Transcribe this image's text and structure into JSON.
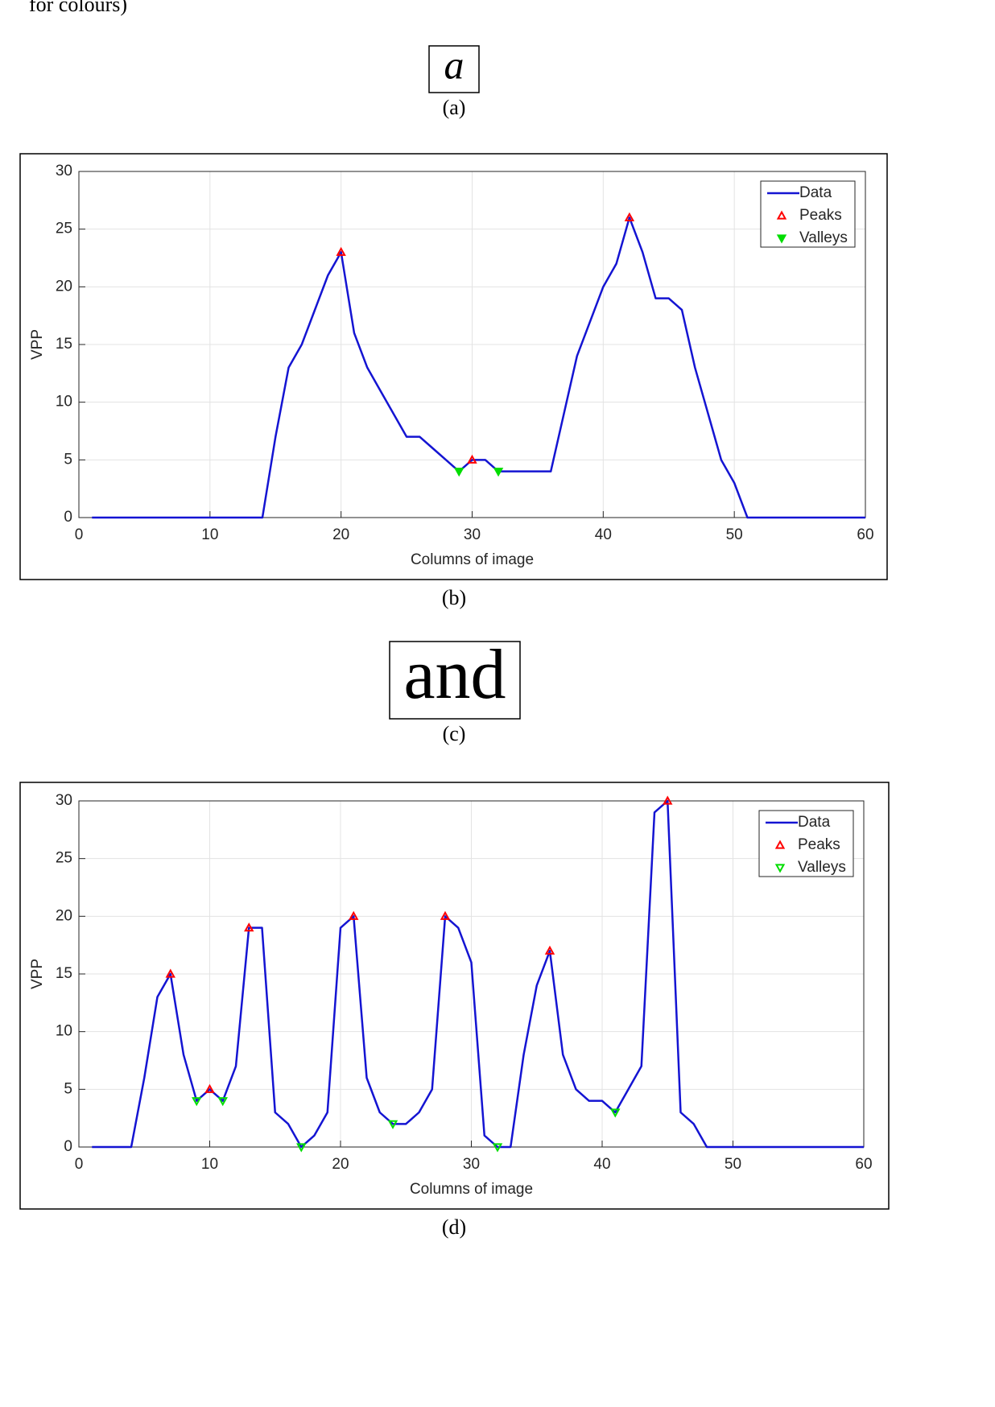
{
  "header_text": "for colours)",
  "panels": {
    "a": {
      "text": "a",
      "caption": "(a)"
    },
    "b": {
      "caption": "(b)"
    },
    "c": {
      "text": "and",
      "caption": "(c)"
    },
    "d": {
      "caption": "(d)"
    }
  },
  "chart_data": [
    {
      "type": "line",
      "xlabel": "Columns of image",
      "ylabel": "VPP",
      "x": [
        1,
        2,
        3,
        4,
        5,
        6,
        7,
        8,
        9,
        10,
        11,
        12,
        13,
        14,
        15,
        16,
        17,
        18,
        19,
        20,
        21,
        22,
        23,
        24,
        25,
        26,
        27,
        28,
        29,
        30,
        31,
        32,
        33,
        34,
        35,
        36,
        37,
        38,
        39,
        40,
        41,
        42,
        43,
        44,
        45,
        46,
        47,
        48,
        49,
        50,
        51,
        52,
        53,
        54,
        55,
        56,
        57,
        58,
        59,
        60
      ],
      "xlim": [
        0,
        60
      ],
      "xticks": [
        0,
        10,
        20,
        30,
        40,
        50,
        60
      ],
      "ylim": [
        0,
        30
      ],
      "yticks": [
        0,
        5,
        10,
        15,
        20,
        25,
        30
      ],
      "grid": true,
      "legend": "northeast",
      "series": [
        {
          "name": "Data",
          "color": "#1414d2",
          "marker": "line",
          "values": [
            0,
            0,
            0,
            0,
            0,
            0,
            0,
            0,
            0,
            0,
            0,
            0,
            0,
            0,
            7,
            13,
            15,
            18,
            21,
            23,
            16,
            13,
            11,
            9,
            7,
            7,
            6,
            5,
            4,
            5,
            5,
            4,
            4,
            4,
            4,
            4,
            9,
            14,
            17,
            20,
            22,
            26,
            23,
            19,
            19,
            18,
            13,
            9,
            5,
            3,
            0,
            0,
            0,
            0,
            0,
            0,
            0,
            0,
            0,
            0
          ]
        },
        {
          "name": "Peaks",
          "color": "#ff0000",
          "marker": "triangle-up",
          "filled": false,
          "x": [
            20,
            30,
            42
          ],
          "values": [
            23,
            5,
            26
          ]
        },
        {
          "name": "Valleys",
          "color": "#00dd00",
          "marker": "triangle-down",
          "filled": true,
          "x": [
            29,
            32
          ],
          "values": [
            4,
            4
          ]
        }
      ]
    },
    {
      "type": "line",
      "xlabel": "Columns of image",
      "ylabel": "VPP",
      "x": [
        1,
        2,
        3,
        4,
        5,
        6,
        7,
        8,
        9,
        10,
        11,
        12,
        13,
        14,
        15,
        16,
        17,
        18,
        19,
        20,
        21,
        22,
        23,
        24,
        25,
        26,
        27,
        28,
        29,
        30,
        31,
        32,
        33,
        34,
        35,
        36,
        37,
        38,
        39,
        40,
        41,
        42,
        43,
        44,
        45,
        46,
        47,
        48,
        49,
        50,
        51,
        52,
        53,
        54,
        55,
        56,
        57,
        58,
        59,
        60
      ],
      "xlim": [
        0,
        60
      ],
      "xticks": [
        0,
        10,
        20,
        30,
        40,
        50,
        60
      ],
      "ylim": [
        0,
        30
      ],
      "yticks": [
        0,
        5,
        10,
        15,
        20,
        25,
        30
      ],
      "grid": true,
      "legend": "northeast",
      "series": [
        {
          "name": "Data",
          "color": "#1414d2",
          "marker": "line",
          "values": [
            0,
            0,
            0,
            0,
            6,
            13,
            15,
            8,
            4,
            5,
            4,
            7,
            19,
            19,
            3,
            2,
            0,
            1,
            3,
            19,
            20,
            6,
            3,
            2,
            2,
            3,
            5,
            20,
            19,
            16,
            1,
            0,
            0,
            8,
            14,
            17,
            8,
            5,
            4,
            4,
            3,
            5,
            7,
            29,
            30,
            3,
            2,
            0,
            0,
            0,
            0,
            0,
            0,
            0,
            0,
            0,
            0,
            0,
            0,
            0
          ]
        },
        {
          "name": "Peaks",
          "color": "#ff0000",
          "marker": "triangle-up",
          "filled": false,
          "x": [
            7,
            10,
            13,
            21,
            28,
            36,
            45
          ],
          "values": [
            15,
            5,
            19,
            20,
            20,
            17,
            30
          ]
        },
        {
          "name": "Valleys",
          "color": "#00dd00",
          "marker": "triangle-down",
          "filled": false,
          "x": [
            9,
            11,
            17,
            24,
            32,
            41
          ],
          "values": [
            4,
            4,
            0,
            2,
            0,
            3
          ]
        }
      ]
    }
  ]
}
